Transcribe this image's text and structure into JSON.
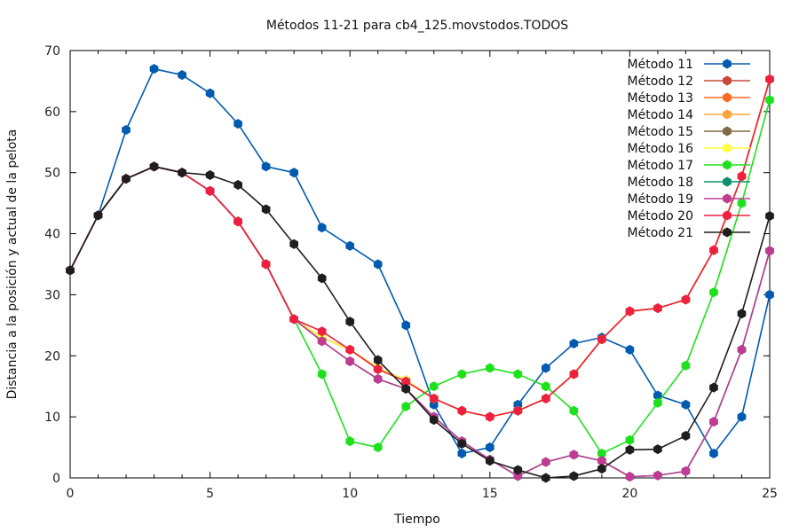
{
  "chart_data": {
    "type": "line",
    "title": "Métodos 11-21 para cb4_125.movstodos.TODOS",
    "xlabel": "Tiempo",
    "ylabel": "Distancia a la posición y actual de la pelota",
    "xlim": [
      0,
      25
    ],
    "ylim": [
      0,
      70
    ],
    "xticks": [
      0,
      5,
      10,
      15,
      20,
      25
    ],
    "yticks": [
      0,
      10,
      20,
      30,
      40,
      50,
      60,
      70
    ],
    "grid": false,
    "legend_position": "top-right",
    "x": [
      0,
      1,
      2,
      3,
      4,
      5,
      6,
      7,
      8,
      9,
      10,
      11,
      12,
      13,
      14,
      15,
      16,
      17,
      18,
      19,
      20,
      21,
      22,
      23,
      24,
      25
    ],
    "series": [
      {
        "name": "Método 11",
        "color": "#005bb0",
        "values": [
          34,
          43,
          57,
          67,
          66,
          63,
          58,
          51,
          50,
          41,
          38,
          35,
          25,
          12,
          4,
          5,
          12,
          18,
          22,
          23,
          21,
          13.5,
          12,
          4,
          10,
          30
        ]
      },
      {
        "name": "Método 12",
        "color": "#c8493b",
        "values": [
          34,
          43,
          49,
          51,
          50,
          47,
          42,
          35,
          26,
          23,
          21,
          18,
          16,
          13,
          11,
          10,
          11,
          13,
          17,
          22.7,
          27.3,
          27.8,
          29.2,
          37.3,
          49.4,
          65.3
        ]
      },
      {
        "name": "Método 13",
        "color": "#ff6a22",
        "values": [
          34,
          43,
          49,
          51,
          50,
          47,
          42,
          35,
          26,
          23,
          21,
          18,
          16,
          13,
          11,
          10,
          11,
          13,
          17,
          22.7,
          27.3,
          27.8,
          29.2,
          37.3,
          49.4,
          65.3
        ]
      },
      {
        "name": "Método 14",
        "color": "#ffa43a",
        "values": [
          34,
          43,
          49,
          51,
          50,
          47,
          42,
          35,
          26,
          23,
          21,
          18,
          16,
          13,
          11,
          10,
          11,
          13,
          17,
          22.7,
          27.3,
          27.8,
          29.2,
          37.3,
          49.4,
          65.3
        ]
      },
      {
        "name": "Método 15",
        "color": "#7f6a45",
        "values": [
          34,
          43,
          49,
          51,
          50,
          47,
          42,
          35,
          26,
          23,
          21,
          18,
          16,
          13,
          11,
          10,
          11,
          13,
          17,
          22.7,
          27.3,
          27.8,
          29.2,
          37.3,
          49.4,
          65.3
        ]
      },
      {
        "name": "Método 16",
        "color": "#ffff3c",
        "values": [
          34,
          43,
          49,
          51,
          50,
          47,
          42,
          35,
          26,
          23,
          21,
          18,
          16,
          13,
          11,
          10,
          11,
          13,
          17,
          22.7,
          27.3,
          27.8,
          29.2,
          37.3,
          49.4,
          65.3
        ]
      },
      {
        "name": "Método 17",
        "color": "#1ee11e",
        "values": [
          34,
          43,
          49,
          51,
          50,
          47,
          42,
          35,
          26,
          17,
          6,
          5,
          11.7,
          15,
          17,
          18,
          17,
          15,
          11,
          4,
          6.2,
          12.3,
          18.4,
          30.4,
          45,
          61.9
        ]
      },
      {
        "name": "Método 18",
        "color": "#0e8f6e",
        "values": [
          34,
          43,
          49,
          51,
          50,
          47,
          42,
          35,
          26,
          22.4,
          19.1,
          16.2,
          14.6,
          10,
          6,
          3,
          0.3,
          2.6,
          3.8,
          2.8,
          0.2,
          0.4,
          1.1,
          9.2,
          21,
          37.2
        ]
      },
      {
        "name": "Método 19",
        "color": "#c03c93",
        "values": [
          34,
          43,
          49,
          51,
          50,
          47,
          42,
          35,
          26,
          22.4,
          19.1,
          16.2,
          14.6,
          10,
          6,
          3,
          0.3,
          2.6,
          3.8,
          2.8,
          0.2,
          0.4,
          1.1,
          9.2,
          21,
          37.2
        ]
      },
      {
        "name": "Método 20",
        "color": "#ee2040",
        "values": [
          34,
          43,
          49,
          51,
          50,
          47,
          42,
          35,
          26,
          24,
          21,
          17.8,
          15.8,
          13,
          11,
          10,
          11,
          13,
          17,
          22.7,
          27.3,
          27.8,
          29.2,
          37.3,
          49.4,
          65.3
        ]
      },
      {
        "name": "Método 21",
        "color": "#1e1e1e",
        "values": [
          34,
          43,
          49,
          51,
          50,
          49.6,
          48,
          44,
          38.3,
          32.7,
          25.6,
          19.3,
          14.6,
          9.5,
          5.6,
          2.8,
          1.3,
          0,
          0.3,
          1.5,
          4.6,
          4.7,
          6.9,
          14.8,
          26.9,
          42.9
        ]
      }
    ]
  }
}
